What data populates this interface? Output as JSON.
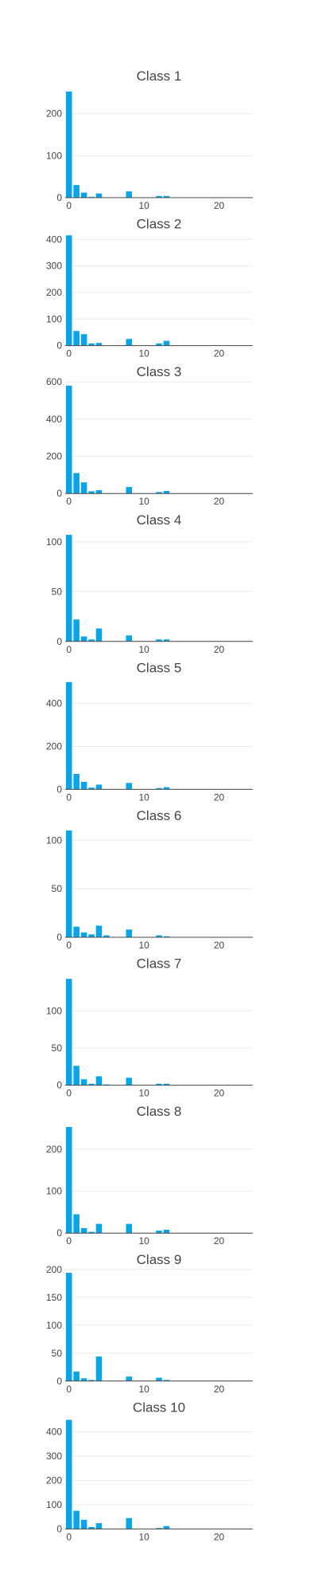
{
  "chart_data": [
    {
      "type": "bar",
      "title": "Class 1",
      "x": [
        0,
        1,
        2,
        3,
        4,
        5,
        6,
        7,
        8,
        9,
        10,
        11,
        12,
        13
      ],
      "values": [
        253,
        30,
        12,
        2,
        10,
        0,
        0,
        0,
        15,
        0,
        0,
        0,
        4,
        4
      ],
      "yticks": [
        0,
        100,
        200
      ],
      "ylim": [
        0,
        266
      ],
      "xticks": [
        0,
        10,
        20
      ],
      "xlim": [
        -0.5,
        24.5
      ],
      "color": "#0aa5e8",
      "grid": true
    },
    {
      "type": "bar",
      "title": "Class 2",
      "x": [
        0,
        1,
        2,
        3,
        4,
        5,
        6,
        7,
        8,
        9,
        10,
        11,
        12,
        13
      ],
      "values": [
        415,
        55,
        43,
        8,
        10,
        0,
        0,
        0,
        25,
        0,
        0,
        0,
        8,
        18
      ],
      "yticks": [
        0,
        100,
        200,
        300,
        400
      ],
      "ylim": [
        0,
        420
      ],
      "xticks": [
        0,
        10,
        20
      ],
      "xlim": [
        -0.5,
        24.5
      ],
      "color": "#0aa5e8",
      "grid": true
    },
    {
      "type": "bar",
      "title": "Class 3",
      "x": [
        0,
        1,
        2,
        3,
        4,
        5,
        6,
        7,
        8,
        9,
        10,
        11,
        12,
        13
      ],
      "values": [
        580,
        110,
        60,
        12,
        18,
        0,
        0,
        0,
        35,
        0,
        0,
        0,
        8,
        14
      ],
      "yticks": [
        0,
        200,
        400,
        600
      ],
      "ylim": [
        0,
        600
      ],
      "xticks": [
        0,
        10,
        20
      ],
      "xlim": [
        -0.5,
        24.5
      ],
      "color": "#0aa5e8",
      "grid": true
    },
    {
      "type": "bar",
      "title": "Class 4",
      "x": [
        0,
        1,
        2,
        3,
        4,
        5,
        6,
        7,
        8,
        9,
        10,
        11,
        12,
        13
      ],
      "values": [
        107,
        22,
        5,
        2,
        13,
        0,
        0,
        0,
        6,
        0,
        0,
        0,
        2,
        2
      ],
      "yticks": [
        0,
        50,
        100
      ],
      "ylim": [
        0,
        112
      ],
      "xticks": [
        0,
        10,
        20
      ],
      "xlim": [
        -0.5,
        24.5
      ],
      "color": "#0aa5e8",
      "grid": true
    },
    {
      "type": "bar",
      "title": "Class 5",
      "x": [
        0,
        1,
        2,
        3,
        4,
        5,
        6,
        7,
        8,
        9,
        10,
        11,
        12,
        13
      ],
      "values": [
        500,
        72,
        35,
        8,
        22,
        0,
        0,
        0,
        30,
        0,
        0,
        0,
        6,
        10
      ],
      "yticks": [
        0,
        200,
        400
      ],
      "ylim": [
        0,
        520
      ],
      "xticks": [
        0,
        10,
        20
      ],
      "xlim": [
        -0.5,
        24.5
      ],
      "color": "#0aa5e8",
      "grid": true
    },
    {
      "type": "bar",
      "title": "Class 6",
      "x": [
        0,
        1,
        2,
        3,
        4,
        5,
        6,
        7,
        8,
        9,
        10,
        11,
        12,
        13
      ],
      "values": [
        110,
        11,
        5,
        3,
        12,
        2,
        0,
        0,
        8,
        0,
        0,
        0,
        2,
        1
      ],
      "yticks": [
        0,
        50,
        100
      ],
      "ylim": [
        0,
        115
      ],
      "xticks": [
        0,
        10,
        20
      ],
      "xlim": [
        -0.5,
        24.5
      ],
      "color": "#0aa5e8",
      "grid": true
    },
    {
      "type": "bar",
      "title": "Class 7",
      "x": [
        0,
        1,
        2,
        3,
        4,
        5,
        6,
        7,
        8,
        9,
        10,
        11,
        12,
        13
      ],
      "values": [
        143,
        26,
        8,
        2,
        12,
        1,
        0,
        0,
        10,
        0,
        0,
        0,
        2,
        2
      ],
      "yticks": [
        0,
        50,
        100
      ],
      "ylim": [
        0,
        150
      ],
      "xticks": [
        0,
        10,
        20
      ],
      "xlim": [
        -0.5,
        24.5
      ],
      "color": "#0aa5e8",
      "grid": true
    },
    {
      "type": "bar",
      "title": "Class 8",
      "x": [
        0,
        1,
        2,
        3,
        4,
        5,
        6,
        7,
        8,
        9,
        10,
        11,
        12,
        13
      ],
      "values": [
        253,
        45,
        12,
        3,
        22,
        0,
        0,
        0,
        22,
        0,
        0,
        0,
        6,
        8
      ],
      "yticks": [
        0,
        100,
        200
      ],
      "ylim": [
        0,
        266
      ],
      "xticks": [
        0,
        10,
        20
      ],
      "xlim": [
        -0.5,
        24.5
      ],
      "color": "#0aa5e8",
      "grid": true
    },
    {
      "type": "bar",
      "title": "Class 9",
      "x": [
        0,
        1,
        2,
        3,
        4,
        5,
        6,
        7,
        8,
        9,
        10,
        11,
        12,
        13
      ],
      "values": [
        194,
        17,
        5,
        2,
        44,
        0,
        0,
        0,
        8,
        0,
        0,
        0,
        6,
        2
      ],
      "yticks": [
        0,
        50,
        100,
        150,
        200
      ],
      "ylim": [
        0,
        200
      ],
      "xticks": [
        0,
        10,
        20
      ],
      "xlim": [
        -0.5,
        24.5
      ],
      "color": "#0aa5e8",
      "grid": true
    },
    {
      "type": "bar",
      "title": "Class 10",
      "x": [
        0,
        1,
        2,
        3,
        4,
        5,
        6,
        7,
        8,
        9,
        10,
        11,
        12,
        13
      ],
      "values": [
        450,
        75,
        38,
        8,
        24,
        0,
        0,
        0,
        45,
        0,
        0,
        0,
        4,
        12
      ],
      "yticks": [
        0,
        100,
        200,
        300,
        400
      ],
      "ylim": [
        0,
        460
      ],
      "xticks": [
        0,
        10,
        20
      ],
      "xlim": [
        -0.5,
        24.5
      ],
      "color": "#0aa5e8",
      "grid": true
    }
  ]
}
